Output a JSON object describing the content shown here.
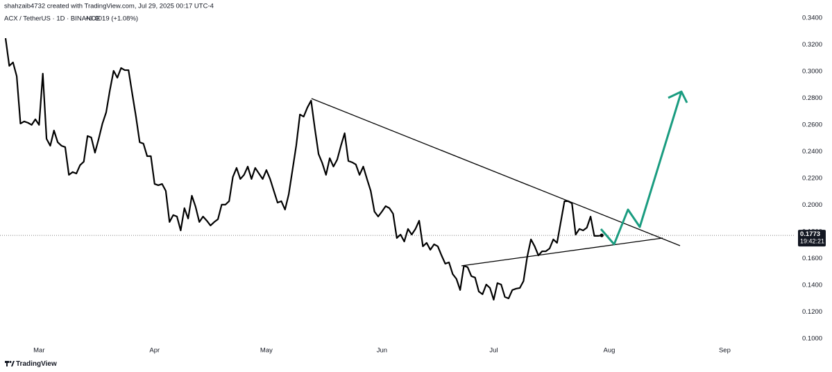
{
  "chart_data": {
    "type": "line",
    "attribution": "shahzaib4732 created with TradingView.com, Jul 29, 2025 00:17 UTC-4",
    "title": "ACX / TetherUS · 1D · BINANCE",
    "change": "+0.0019 (+1.08%)",
    "branding": "TradingView",
    "color": "#000000",
    "grid": false,
    "last_price": 0.1773,
    "countdown": "19:42:21",
    "ylim": [
      0.0958,
      0.3535
    ],
    "yticks": [
      {
        "value": 0.1,
        "label": "0.1000"
      },
      {
        "value": 0.12,
        "label": "0.1200"
      },
      {
        "value": 0.14,
        "label": "0.1400"
      },
      {
        "value": 0.16,
        "label": "0.1600"
      },
      {
        "value": 0.18,
        "label": "0.1800"
      },
      {
        "value": 0.2,
        "label": "0.2000"
      },
      {
        "value": 0.22,
        "label": "0.2200"
      },
      {
        "value": 0.24,
        "label": "0.2400"
      },
      {
        "value": 0.26,
        "label": "0.2600"
      },
      {
        "value": 0.28,
        "label": "0.2800"
      },
      {
        "value": 0.3,
        "label": "0.3000"
      },
      {
        "value": 0.32,
        "label": "0.3200"
      },
      {
        "value": 0.34,
        "label": "0.3400"
      }
    ],
    "categories": [
      null,
      null,
      null,
      null,
      null,
      null,
      null,
      null,
      null,
      "Mar",
      null,
      null,
      null,
      null,
      null,
      null,
      null,
      null,
      null,
      null,
      null,
      null,
      null,
      null,
      null,
      null,
      null,
      null,
      null,
      null,
      null,
      null,
      null,
      null,
      null,
      null,
      null,
      null,
      null,
      null,
      "Apr",
      null,
      null,
      null,
      null,
      null,
      null,
      null,
      null,
      null,
      null,
      null,
      null,
      null,
      null,
      null,
      null,
      null,
      null,
      null,
      null,
      null,
      null,
      null,
      null,
      null,
      null,
      null,
      null,
      null,
      "May",
      null,
      null,
      null,
      null,
      null,
      null,
      null,
      null,
      null,
      null,
      null,
      null,
      null,
      null,
      null,
      null,
      null,
      null,
      null,
      null,
      null,
      null,
      null,
      null,
      null,
      null,
      null,
      null,
      null,
      null,
      "Jun",
      null,
      null,
      null,
      null,
      null,
      null,
      null,
      null,
      null,
      null,
      null,
      null,
      null,
      null,
      null,
      null,
      null,
      null,
      null,
      null,
      null,
      null,
      null,
      null,
      null,
      null,
      null,
      null,
      null,
      "Jul",
      null,
      null,
      null,
      null,
      null,
      null,
      null,
      null,
      null,
      null,
      null,
      null,
      null,
      null,
      null,
      null,
      null,
      null,
      null,
      null,
      null,
      null,
      null,
      null,
      null,
      null,
      null,
      null,
      null,
      null,
      "Aug",
      null,
      null,
      null,
      null,
      null,
      null,
      null,
      null,
      null,
      null,
      null,
      null,
      null,
      null,
      null,
      null,
      null,
      null,
      null,
      null,
      null,
      null,
      null,
      null,
      null,
      null,
      null,
      null,
      null,
      null,
      "Sep",
      null,
      null,
      null,
      null,
      null,
      null,
      null,
      null,
      null,
      null,
      null,
      null,
      null,
      null,
      null,
      null,
      null
    ],
    "values": [
      0.3249,
      0.3042,
      0.3068,
      0.2964,
      0.261,
      0.2626,
      0.2616,
      0.26,
      0.2642,
      0.26,
      0.2984,
      0.2496,
      0.2444,
      0.2558,
      0.247,
      0.2444,
      0.2434,
      0.2226,
      0.2247,
      0.2236,
      0.2299,
      0.2325,
      0.2517,
      0.2506,
      0.2392,
      0.2496,
      0.261,
      0.2694,
      0.286,
      0.3005,
      0.2953,
      0.3026,
      0.301,
      0.301,
      0.2834,
      0.2662,
      0.247,
      0.246,
      0.2366,
      0.2366,
      0.2158,
      0.2148,
      0.2158,
      0.2106,
      0.1873,
      0.1925,
      0.1914,
      0.181,
      0.1977,
      0.1899,
      0.207,
      0.1987,
      0.1873,
      0.1914,
      0.1883,
      0.1847,
      0.1873,
      0.1894,
      0.2003,
      0.2003,
      0.2029,
      0.221,
      0.2278,
      0.2195,
      0.2226,
      0.2288,
      0.2195,
      0.2278,
      0.2236,
      0.2195,
      0.2262,
      0.2195,
      0.2106,
      0.2018,
      0.2029,
      0.1966,
      0.2081,
      0.2262,
      0.2444,
      0.2678,
      0.2662,
      0.273,
      0.2782,
      0.2574,
      0.2382,
      0.2314,
      0.2226,
      0.2351,
      0.2288,
      0.234,
      0.2444,
      0.2538,
      0.233,
      0.232,
      0.2304,
      0.2226,
      0.2288,
      0.2195,
      0.2106,
      0.1951,
      0.1914,
      0.1951,
      0.1992,
      0.1977,
      0.1935,
      0.1753,
      0.1779,
      0.1727,
      0.1821,
      0.1779,
      0.1821,
      0.1883,
      0.1691,
      0.1717,
      0.1665,
      0.1706,
      0.1691,
      0.1623,
      0.1561,
      0.1571,
      0.1483,
      0.1447,
      0.1364,
      0.1545,
      0.1535,
      0.1468,
      0.1457,
      0.1353,
      0.1332,
      0.1405,
      0.1379,
      0.1291,
      0.1416,
      0.1405,
      0.1312,
      0.1301,
      0.1364,
      0.1374,
      0.1379,
      0.1431,
      0.1613,
      0.1743,
      0.1691,
      0.1623,
      0.1654,
      0.1654,
      0.1675,
      0.1743,
      0.1717,
      0.1873,
      0.2029,
      0.2029,
      0.2013,
      0.1779,
      0.1821,
      0.181,
      0.1831,
      0.1914,
      0.1769,
      0.1769,
      0.1773,
      null,
      null,
      null,
      null,
      null,
      null,
      null,
      null,
      null,
      null,
      null,
      null,
      null,
      null,
      null,
      null,
      null,
      null,
      null,
      null,
      null,
      null,
      null,
      null,
      null,
      null,
      null,
      null,
      null,
      null,
      null,
      null,
      null,
      null,
      null,
      null,
      null,
      null,
      null,
      null,
      null,
      null,
      null,
      null,
      null,
      null,
      null,
      null,
      null,
      null
    ]
  }
}
